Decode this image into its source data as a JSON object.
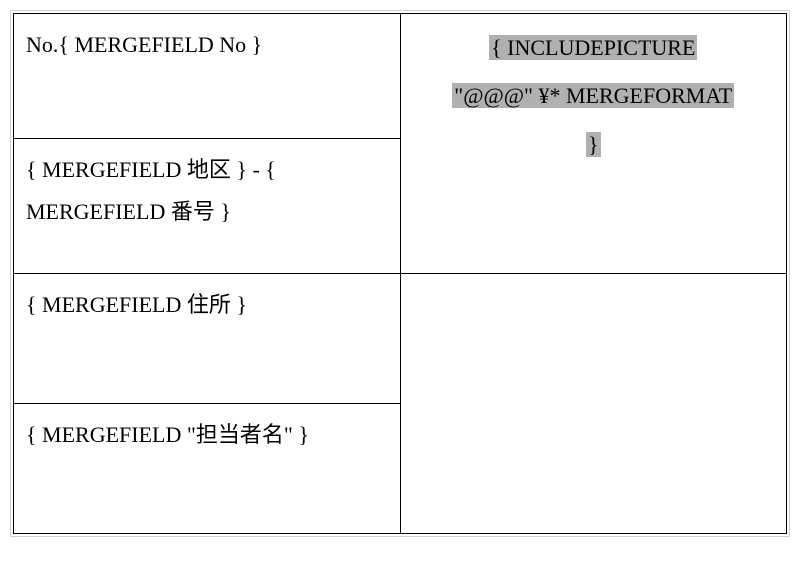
{
  "table": {
    "cells": {
      "no_field": "No.{  MERGEFIELD No  }",
      "district_field": "{  MERGEFIELD  地区  }  -  {  MERGEFIELD  番号  }",
      "address_field": "{  MERGEFIELD  住所  }",
      "person_field": "{  MERGEFIELD \"担当者名\"  }",
      "picture_line1": "{  INCLUDEPICTURE",
      "picture_line2": "\"@@@\"   ¥* MERGEFORMAT",
      "picture_line3": "}"
    }
  },
  "styling": {
    "font_family": "Times New Roman, serif",
    "font_size_pt": 22,
    "border_color": "#000000",
    "outer_border_color": "#d0d0d0",
    "highlight_bg": "#b0b0b0",
    "background": "#ffffff",
    "text_color": "#000000",
    "line_height": 1.9
  }
}
